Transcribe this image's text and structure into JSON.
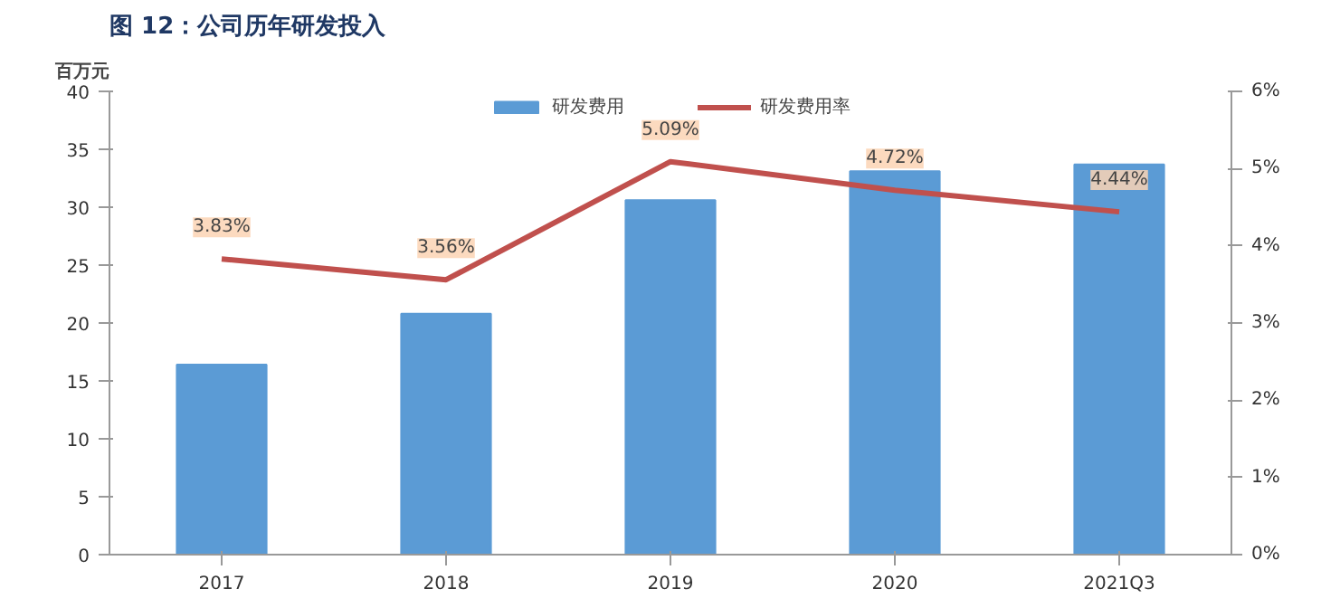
{
  "chart_data": {
    "type": "bar",
    "title": "图 12：公司历年研发投入",
    "ylabel": "百万元",
    "categories": [
      "2017",
      "2018",
      "2019",
      "2020",
      "2021Q3"
    ],
    "series": [
      {
        "name": "研发费用",
        "color": "#5b9bd5",
        "values": [
          16.4,
          20.8,
          30.6,
          33.1,
          33.7
        ]
      },
      {
        "name": "研发费用率",
        "type": "line",
        "axis": "y2",
        "color": "#c0504d",
        "values": [
          3.83,
          3.56,
          5.09,
          4.72,
          4.44
        ],
        "value_labels": [
          "3.83%",
          "3.56%",
          "5.09%",
          "4.72%",
          "4.44%"
        ]
      }
    ],
    "ylim": [
      0,
      40
    ],
    "yticks": [
      0,
      5,
      10,
      15,
      20,
      25,
      30,
      35,
      40
    ],
    "y2lim": [
      0,
      6
    ],
    "y2ticks": [
      {
        "value": 0,
        "label": "0%"
      },
      {
        "value": 1,
        "label": "1%"
      },
      {
        "value": 2,
        "label": "2%"
      },
      {
        "value": 3,
        "label": "3%"
      },
      {
        "value": 4,
        "label": "4%"
      },
      {
        "value": 5,
        "label": "5%"
      },
      {
        "value": 6,
        "label": "6%"
      }
    ],
    "grid": false,
    "legend": "top"
  }
}
